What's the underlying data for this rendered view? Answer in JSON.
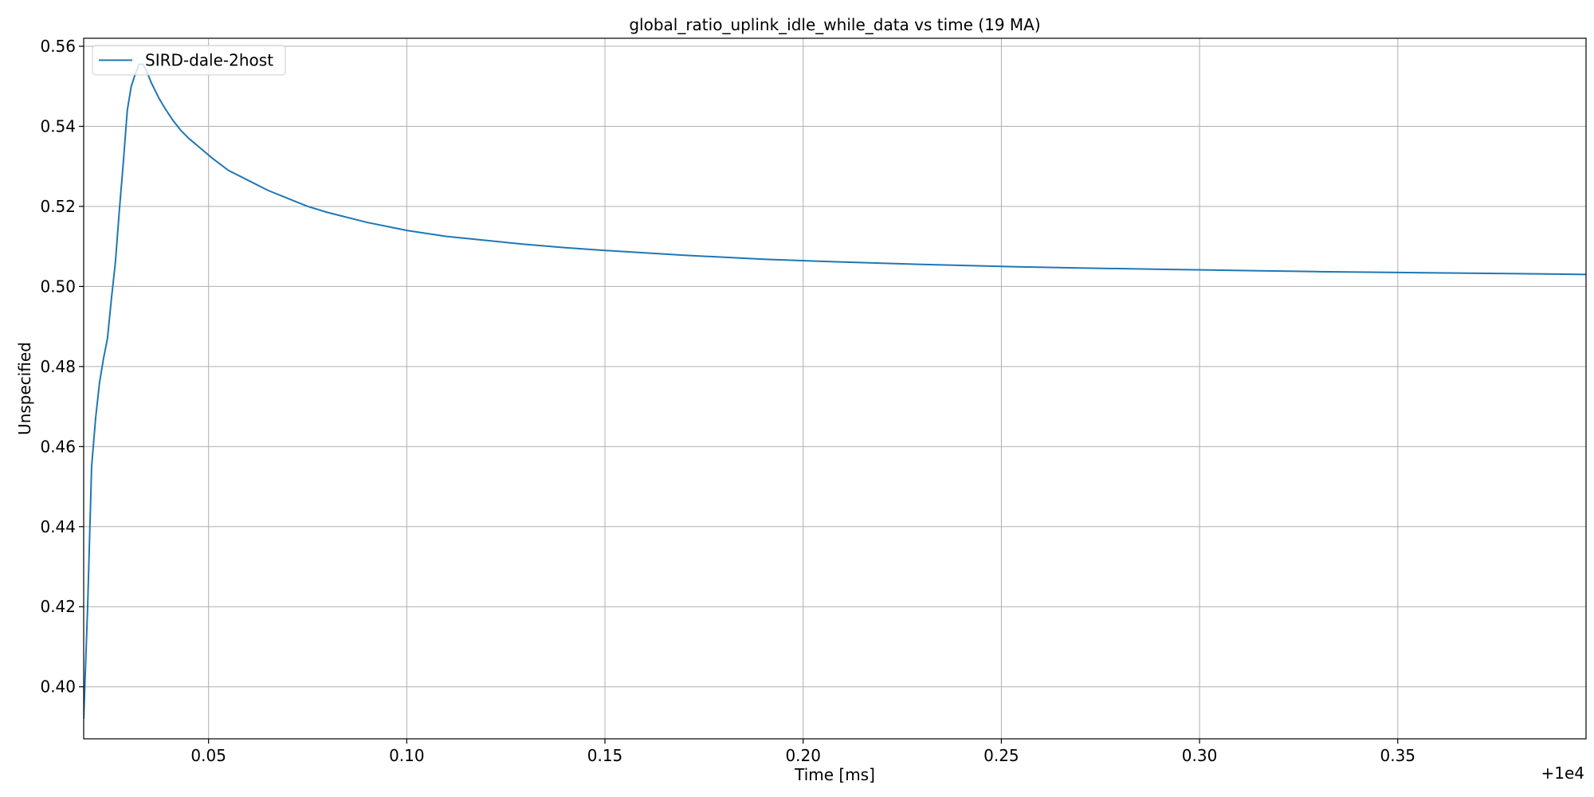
{
  "chart_data": {
    "type": "line",
    "title": "global_ratio_uplink_idle_while_data vs time (19 MA)",
    "xlabel": "Time [ms]",
    "ylabel": "Unspecified",
    "x_offset_label": "+1e4",
    "xlim": [
      0.0185,
      0.3975
    ],
    "ylim": [
      0.387,
      0.562
    ],
    "x_ticks": [
      0.05,
      0.1,
      0.15,
      0.2,
      0.25,
      0.3,
      0.35
    ],
    "x_tick_labels": [
      "0.05",
      "0.10",
      "0.15",
      "0.20",
      "0.25",
      "0.30",
      "0.35"
    ],
    "y_ticks": [
      0.4,
      0.42,
      0.44,
      0.46,
      0.48,
      0.5,
      0.52,
      0.54,
      0.56
    ],
    "y_tick_labels": [
      "0.40",
      "0.42",
      "0.44",
      "0.46",
      "0.48",
      "0.50",
      "0.52",
      "0.54",
      "0.56"
    ],
    "grid": true,
    "legend_position": "top-left",
    "series": [
      {
        "name": "SIRD-dale-2host",
        "color": "#1f77b4",
        "x": [
          0.0185,
          0.0195,
          0.0205,
          0.0215,
          0.0225,
          0.0235,
          0.0245,
          0.0255,
          0.0265,
          0.0275,
          0.0285,
          0.0295,
          0.0305,
          0.0315,
          0.0325,
          0.0335,
          0.0345,
          0.0355,
          0.0365,
          0.0375,
          0.039,
          0.041,
          0.043,
          0.045,
          0.048,
          0.051,
          0.055,
          0.06,
          0.065,
          0.07,
          0.075,
          0.08,
          0.09,
          0.1,
          0.11,
          0.12,
          0.13,
          0.14,
          0.15,
          0.17,
          0.19,
          0.21,
          0.23,
          0.25,
          0.27,
          0.29,
          0.31,
          0.33,
          0.35,
          0.37,
          0.39,
          0.3975
        ],
        "y": [
          0.392,
          0.42,
          0.455,
          0.467,
          0.476,
          0.482,
          0.487,
          0.497,
          0.506,
          0.519,
          0.531,
          0.544,
          0.55,
          0.553,
          0.5555,
          0.5555,
          0.5535,
          0.551,
          0.549,
          0.547,
          0.5445,
          0.5415,
          0.539,
          0.537,
          0.5345,
          0.532,
          0.529,
          0.5265,
          0.524,
          0.522,
          0.52,
          0.5185,
          0.516,
          0.514,
          0.5125,
          0.5115,
          0.5105,
          0.5097,
          0.509,
          0.5078,
          0.5068,
          0.5061,
          0.5055,
          0.505,
          0.5046,
          0.5043,
          0.504,
          0.5037,
          0.5035,
          0.5033,
          0.5031,
          0.503
        ]
      }
    ]
  }
}
